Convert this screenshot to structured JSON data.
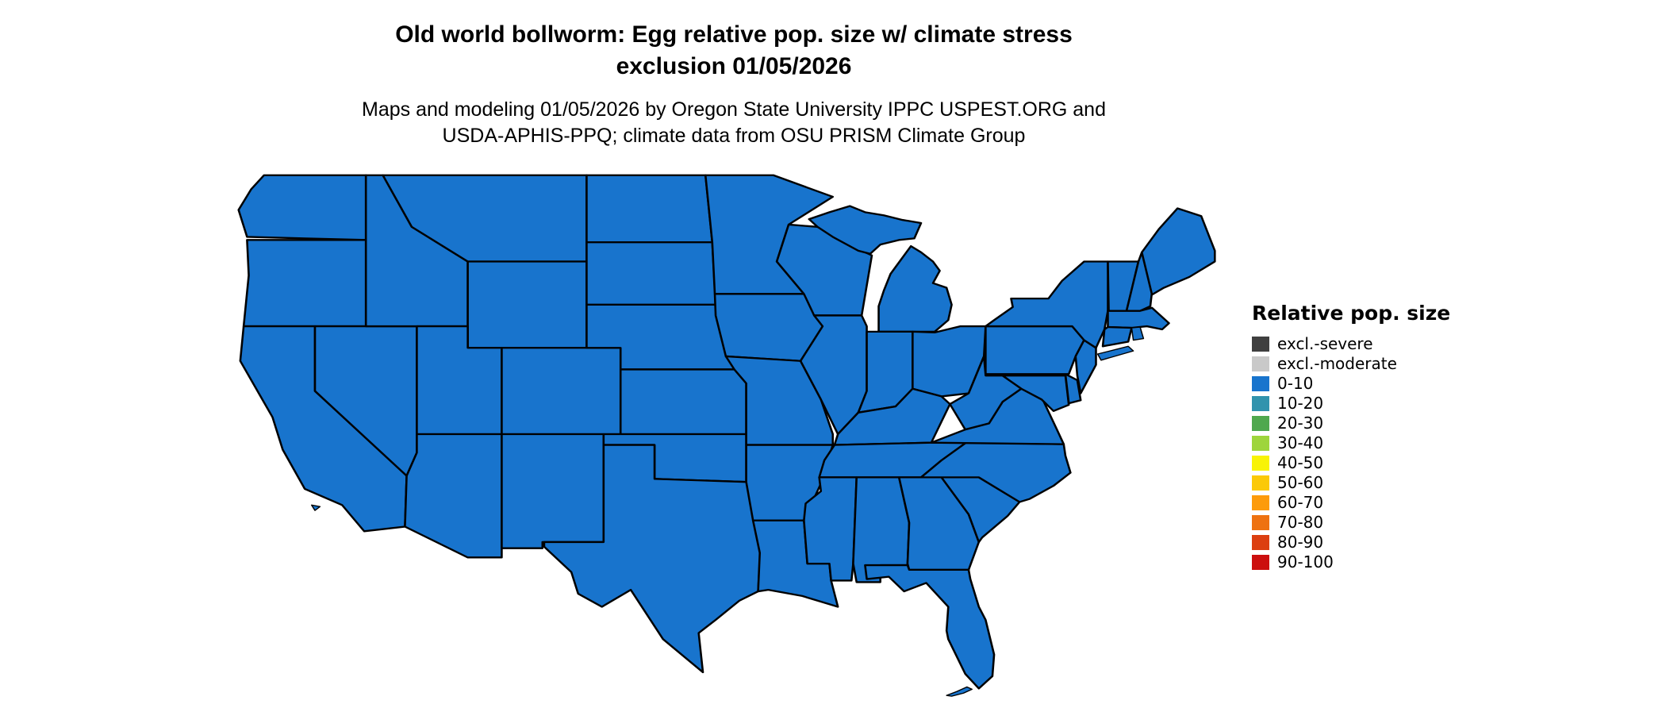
{
  "page": {
    "background": "#ffffff"
  },
  "title": {
    "line1": "Old world bollworm: Egg relative pop. size w/ climate stress",
    "line2": "exclusion 01/05/2026"
  },
  "subtitle": {
    "line1": "Maps and modeling 01/05/2026 by Oregon State University IPPC USPEST.ORG and",
    "line2": "USDA-APHIS-PPQ; climate data from OSU PRISM Climate Group"
  },
  "map": {
    "region": "Continental United States",
    "fill_color": "#1874cd",
    "border_color": "#000000",
    "uniform_fill_category": "0-10"
  },
  "legend": {
    "title": "Relative pop. size",
    "items": [
      {
        "label": "excl.-severe",
        "color": "#3f3f3f"
      },
      {
        "label": "excl.-moderate",
        "color": "#c9c9c9"
      },
      {
        "label": "0-10",
        "color": "#1874cd"
      },
      {
        "label": "10-20",
        "color": "#3193ad"
      },
      {
        "label": "20-30",
        "color": "#4fa84e"
      },
      {
        "label": "30-40",
        "color": "#9ed53c"
      },
      {
        "label": "40-50",
        "color": "#f8f306"
      },
      {
        "label": "50-60",
        "color": "#fbc908"
      },
      {
        "label": "60-70",
        "color": "#fd9b0b"
      },
      {
        "label": "70-80",
        "color": "#ee7211"
      },
      {
        "label": "80-90",
        "color": "#dc3f10"
      },
      {
        "label": "90-100",
        "color": "#cc0f0e"
      }
    ]
  }
}
